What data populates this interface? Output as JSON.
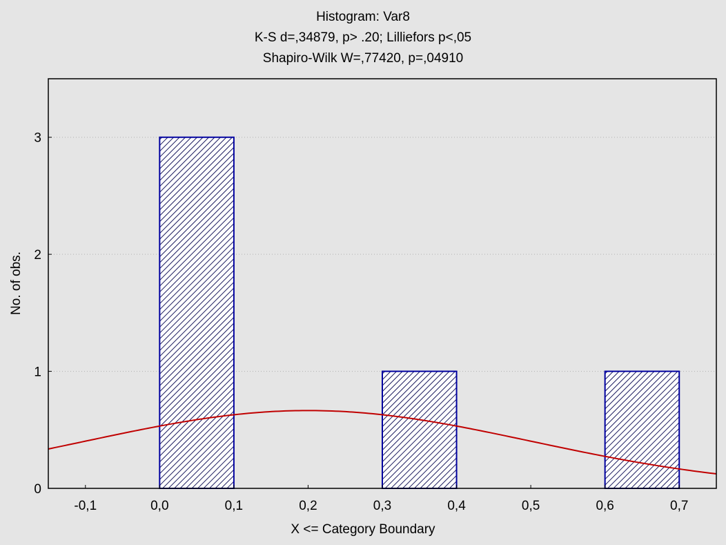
{
  "chart_data": {
    "type": "bar",
    "title": "Histogram: Var8",
    "subtitle_lines": [
      "K-S d=,34879, p> .20; Lilliefors p<,05",
      "Shapiro-Wilk W=,77420, p=,04910"
    ],
    "xlabel": "X <= Category Boundary",
    "ylabel": "No. of obs.",
    "xlim": [
      -0.15,
      0.75
    ],
    "ylim": [
      0,
      3.5
    ],
    "x_ticks": [
      -0.1,
      0.0,
      0.1,
      0.2,
      0.3,
      0.4,
      0.5,
      0.6,
      0.7
    ],
    "x_tick_labels": [
      "-0,1",
      "0,0",
      "0,1",
      "0,2",
      "0,3",
      "0,4",
      "0,5",
      "0,6",
      "0,7"
    ],
    "y_ticks": [
      0,
      1,
      2,
      3
    ],
    "y_tick_labels": [
      "0",
      "1",
      "2",
      "3"
    ],
    "grid": "horizontal dotted",
    "bins": [
      {
        "from": 0.0,
        "to": 0.1,
        "count": 3
      },
      {
        "from": 0.3,
        "to": 0.4,
        "count": 1
      },
      {
        "from": 0.6,
        "to": 0.7,
        "count": 1
      }
    ],
    "normal_curve": {
      "mean": 0.2,
      "sd": 0.3,
      "n": 5,
      "bin_width": 0.1
    },
    "colors": {
      "bar_edge": "#0000a0",
      "bar_hatch": "#1a1a5e",
      "curve": "#c00000",
      "grid": "#b0b0b0",
      "background": "#e5e5e5"
    }
  }
}
